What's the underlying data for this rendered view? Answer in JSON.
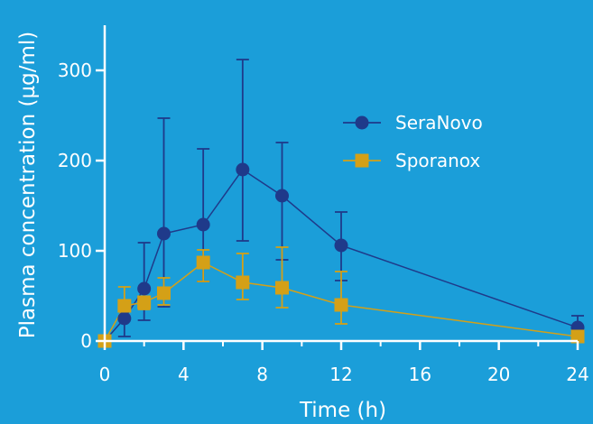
{
  "chart_data": {
    "type": "line",
    "xlabel": "Time (h)",
    "ylabel": "Plasma concentration (µg/ml)",
    "xlim": [
      0,
      24
    ],
    "ylim": [
      0,
      350
    ],
    "x_ticks": [
      0,
      4,
      8,
      12,
      16,
      20,
      24
    ],
    "x_minor_ticks": [
      2,
      6,
      10,
      14,
      18,
      22
    ],
    "y_ticks": [
      0,
      100,
      200,
      300
    ],
    "grid": false,
    "legend_position": "top-right",
    "series": [
      {
        "name": "SeraNovo",
        "color": "#1f3a8a",
        "marker": "circle",
        "x": [
          0,
          1,
          2,
          3,
          5,
          7,
          9,
          12,
          24
        ],
        "y": [
          0,
          25,
          58,
          119,
          129,
          190,
          161,
          106,
          15
        ],
        "err_low": [
          0,
          20,
          35,
          81,
          63,
          79,
          71,
          39,
          5
        ],
        "err_high": [
          0,
          11,
          51,
          128,
          84,
          122,
          59,
          37,
          13
        ]
      },
      {
        "name": "Sporanox",
        "color": "#d4a017",
        "marker": "square",
        "x": [
          0,
          1,
          2,
          3,
          5,
          7,
          9,
          12,
          24
        ],
        "y": [
          0,
          39,
          43,
          53,
          87,
          65,
          59,
          40,
          5
        ],
        "err_low": [
          0,
          14,
          8,
          13,
          21,
          19,
          22,
          21,
          2
        ],
        "err_high": [
          0,
          21,
          17,
          17,
          14,
          32,
          45,
          37,
          3
        ]
      }
    ]
  }
}
